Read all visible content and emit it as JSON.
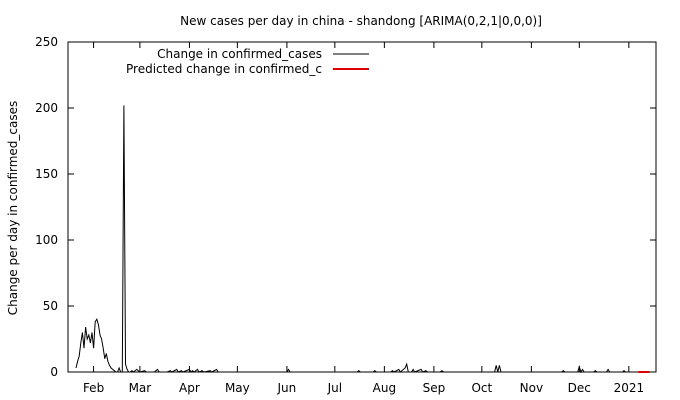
{
  "chart_data": {
    "type": "line",
    "title": "New cases per day in china - shandong [ARIMA(0,2,1|0,0,0)]",
    "xlabel": "",
    "ylabel": "Change per day in confirmed_cases",
    "ylim": [
      0,
      250
    ],
    "yticks": [
      0,
      50,
      100,
      150,
      200,
      250
    ],
    "xlim": [
      "2020-01-16",
      "2021-01-18"
    ],
    "xticks": [
      {
        "label": "Feb",
        "date": "2020-02-01"
      },
      {
        "label": "Mar",
        "date": "2020-03-01"
      },
      {
        "label": "Apr",
        "date": "2020-04-01"
      },
      {
        "label": "May",
        "date": "2020-05-01"
      },
      {
        "label": "Jun",
        "date": "2020-06-01"
      },
      {
        "label": "Jul",
        "date": "2020-07-01"
      },
      {
        "label": "Aug",
        "date": "2020-08-01"
      },
      {
        "label": "Sep",
        "date": "2020-09-01"
      },
      {
        "label": "Oct",
        "date": "2020-10-01"
      },
      {
        "label": "Nov",
        "date": "2020-11-01"
      },
      {
        "label": "Dec",
        "date": "2020-12-01"
      },
      {
        "label": "2021",
        "date": "2021-01-01"
      }
    ],
    "grid": false,
    "legend_position": "top-left",
    "series": [
      {
        "name": "Change in confirmed_cases",
        "color": "#000000",
        "points": [
          [
            "2020-01-21",
            3
          ],
          [
            "2020-01-22",
            8
          ],
          [
            "2020-01-23",
            12
          ],
          [
            "2020-01-24",
            22
          ],
          [
            "2020-01-25",
            30
          ],
          [
            "2020-01-26",
            18
          ],
          [
            "2020-01-27",
            34
          ],
          [
            "2020-01-28",
            25
          ],
          [
            "2020-01-29",
            28
          ],
          [
            "2020-01-30",
            22
          ],
          [
            "2020-01-31",
            30
          ],
          [
            "2020-02-01",
            18
          ],
          [
            "2020-02-02",
            38
          ],
          [
            "2020-02-03",
            40
          ],
          [
            "2020-02-04",
            36
          ],
          [
            "2020-02-05",
            28
          ],
          [
            "2020-02-06",
            25
          ],
          [
            "2020-02-07",
            18
          ],
          [
            "2020-02-08",
            10
          ],
          [
            "2020-02-09",
            14
          ],
          [
            "2020-02-10",
            8
          ],
          [
            "2020-02-11",
            5
          ],
          [
            "2020-02-12",
            3
          ],
          [
            "2020-02-13",
            2
          ],
          [
            "2020-02-14",
            1
          ],
          [
            "2020-02-15",
            0
          ],
          [
            "2020-02-16",
            0
          ],
          [
            "2020-02-17",
            3
          ],
          [
            "2020-02-18",
            0
          ],
          [
            "2020-02-19",
            0
          ],
          [
            "2020-02-20",
            202
          ],
          [
            "2020-02-21",
            6
          ],
          [
            "2020-02-22",
            2
          ],
          [
            "2020-02-23",
            0
          ],
          [
            "2020-02-24",
            0
          ],
          [
            "2020-02-25",
            1
          ],
          [
            "2020-02-26",
            0
          ],
          [
            "2020-02-28",
            2
          ],
          [
            "2020-03-01",
            0
          ],
          [
            "2020-03-04",
            1
          ],
          [
            "2020-03-05",
            0
          ],
          [
            "2020-03-10",
            0
          ],
          [
            "2020-03-12",
            2
          ],
          [
            "2020-03-13",
            0
          ],
          [
            "2020-03-18",
            0
          ],
          [
            "2020-03-20",
            1
          ],
          [
            "2020-03-21",
            0
          ],
          [
            "2020-03-24",
            2
          ],
          [
            "2020-03-25",
            0
          ],
          [
            "2020-03-27",
            1
          ],
          [
            "2020-03-28",
            0
          ],
          [
            "2020-04-01",
            2
          ],
          [
            "2020-04-02",
            0
          ],
          [
            "2020-04-03",
            1
          ],
          [
            "2020-04-04",
            0
          ],
          [
            "2020-04-06",
            2
          ],
          [
            "2020-04-07",
            0
          ],
          [
            "2020-04-09",
            1
          ],
          [
            "2020-04-10",
            0
          ],
          [
            "2020-04-14",
            1
          ],
          [
            "2020-04-15",
            0
          ],
          [
            "2020-04-18",
            2
          ],
          [
            "2020-04-19",
            0
          ],
          [
            "2020-06-01",
            0
          ],
          [
            "2020-06-02",
            2
          ],
          [
            "2020-06-03",
            0
          ],
          [
            "2020-07-15",
            0
          ],
          [
            "2020-07-16",
            1
          ],
          [
            "2020-07-17",
            0
          ],
          [
            "2020-07-25",
            0
          ],
          [
            "2020-07-26",
            1
          ],
          [
            "2020-07-27",
            0
          ],
          [
            "2020-08-05",
            0
          ],
          [
            "2020-08-06",
            1
          ],
          [
            "2020-08-07",
            0
          ],
          [
            "2020-08-10",
            2
          ],
          [
            "2020-08-11",
            0
          ],
          [
            "2020-08-14",
            3
          ],
          [
            "2020-08-15",
            6
          ],
          [
            "2020-08-16",
            0
          ],
          [
            "2020-08-18",
            0
          ],
          [
            "2020-08-19",
            2
          ],
          [
            "2020-08-20",
            0
          ],
          [
            "2020-08-24",
            2
          ],
          [
            "2020-08-25",
            0
          ],
          [
            "2020-08-27",
            1
          ],
          [
            "2020-08-28",
            0
          ],
          [
            "2020-09-05",
            0
          ],
          [
            "2020-09-06",
            1
          ],
          [
            "2020-09-07",
            0
          ],
          [
            "2020-10-09",
            0
          ],
          [
            "2020-10-10",
            5
          ],
          [
            "2020-10-11",
            0
          ],
          [
            "2020-10-12",
            5
          ],
          [
            "2020-10-13",
            0
          ],
          [
            "2020-11-20",
            0
          ],
          [
            "2020-11-21",
            1
          ],
          [
            "2020-11-22",
            0
          ],
          [
            "2020-11-30",
            0
          ],
          [
            "2020-12-01",
            4
          ],
          [
            "2020-12-02",
            0
          ],
          [
            "2020-12-03",
            2
          ],
          [
            "2020-12-04",
            0
          ],
          [
            "2020-12-10",
            0
          ],
          [
            "2020-12-11",
            1
          ],
          [
            "2020-12-12",
            0
          ],
          [
            "2020-12-18",
            0
          ],
          [
            "2020-12-19",
            2
          ],
          [
            "2020-12-20",
            0
          ],
          [
            "2020-12-28",
            0
          ],
          [
            "2020-12-29",
            1
          ],
          [
            "2020-12-30",
            0
          ],
          [
            "2021-01-05",
            0
          ]
        ]
      },
      {
        "name": "Predicted change in confirmed_c",
        "color": "#e00000",
        "points": [
          [
            "2021-01-07",
            0
          ],
          [
            "2021-01-14",
            0
          ]
        ]
      }
    ]
  }
}
